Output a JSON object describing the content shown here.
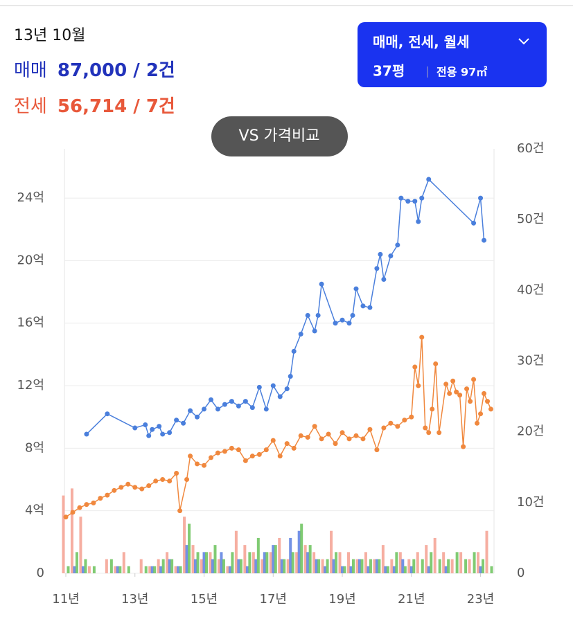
{
  "header": {
    "date": "13년 10월",
    "sale_value": "87,000 / 2건",
    "jeonse_value": "56,714 / 7건",
    "filter": "매매, 전세, 월세",
    "size": "37평",
    "area": "전용 97㎡",
    "compare": "VS 가격비교"
  },
  "chart_data": {
    "type": "line",
    "xlim": [
      11,
      23.35
    ],
    "xticks": [
      {
        "value": 11,
        "label": "11년"
      },
      {
        "value": 13,
        "label": "13년"
      },
      {
        "value": 15,
        "label": "15년"
      },
      {
        "value": 17,
        "label": "17년"
      },
      {
        "value": 19,
        "label": "19년"
      },
      {
        "value": 21,
        "label": "21년"
      },
      {
        "value": 23,
        "label": "23년"
      }
    ],
    "ylim": [
      0,
      27.15
    ],
    "yticks": [
      0,
      {
        "value": 4,
        "label": "4억"
      },
      {
        "value": 8,
        "label": "8억"
      },
      {
        "value": 12,
        "label": "12억"
      },
      {
        "value": 16,
        "label": "16억"
      },
      {
        "value": 20,
        "label": "20억"
      },
      {
        "value": 24,
        "label": "24억"
      }
    ],
    "y2lim": [
      0,
      60
    ],
    "y2ticks": [
      0,
      {
        "value": 10,
        "label": "10건"
      },
      {
        "value": 20,
        "label": "20건"
      },
      {
        "value": 30,
        "label": "30건"
      },
      {
        "value": 40,
        "label": "40건"
      },
      {
        "value": 50,
        "label": "50건"
      },
      {
        "value": 60,
        "label": "60건"
      }
    ],
    "grid": true,
    "series": [
      {
        "name": "매매",
        "color": "#4a7fdc",
        "type": "line",
        "x": [
          11.6,
          12.2,
          13.0,
          13.3,
          13.4,
          13.5,
          13.7,
          13.8,
          14.0,
          14.2,
          14.4,
          14.6,
          14.8,
          15.0,
          15.2,
          15.4,
          15.6,
          15.8,
          16.0,
          16.2,
          16.4,
          16.6,
          16.8,
          17.0,
          17.2,
          17.4,
          17.5,
          17.6,
          17.8,
          18.0,
          18.2,
          18.3,
          18.4,
          18.8,
          19.0,
          19.2,
          19.3,
          19.4,
          19.6,
          19.8,
          20.0,
          20.1,
          20.2,
          20.4,
          20.6,
          20.7,
          20.9,
          21.1,
          21.2,
          21.3,
          21.5,
          22.8,
          23.0,
          23.1
        ],
        "values": [
          8.9,
          10.2,
          9.3,
          9.5,
          8.8,
          9.2,
          9.4,
          8.9,
          9.0,
          9.8,
          9.6,
          10.4,
          10.0,
          10.5,
          11.1,
          10.5,
          10.8,
          11.0,
          10.7,
          11.0,
          10.6,
          11.9,
          10.5,
          12.0,
          11.3,
          11.8,
          12.6,
          14.2,
          15.3,
          16.5,
          15.5,
          16.5,
          18.5,
          16.0,
          16.2,
          16.0,
          16.5,
          18.2,
          17.1,
          17.0,
          19.5,
          20.4,
          18.8,
          20.3,
          21.0,
          24.0,
          23.8,
          23.8,
          22.5,
          24.0,
          25.2,
          22.4,
          24.0,
          21.3
        ]
      },
      {
        "name": "전세",
        "color": "#f0883e",
        "type": "line",
        "x": [
          11.0,
          11.2,
          11.4,
          11.6,
          11.8,
          12.0,
          12.2,
          12.4,
          12.6,
          12.8,
          13.0,
          13.2,
          13.4,
          13.6,
          13.8,
          14.0,
          14.2,
          14.3,
          14.5,
          14.6,
          14.8,
          15.0,
          15.2,
          15.4,
          15.6,
          15.8,
          16.0,
          16.2,
          16.4,
          16.6,
          16.8,
          17.0,
          17.2,
          17.4,
          17.6,
          17.8,
          18.0,
          18.2,
          18.4,
          18.6,
          18.8,
          19.0,
          19.2,
          19.4,
          19.6,
          19.8,
          20.0,
          20.2,
          20.4,
          20.6,
          20.8,
          21.0,
          21.1,
          21.2,
          21.3,
          21.4,
          21.5,
          21.6,
          21.7,
          21.8,
          22.0,
          22.1,
          22.2,
          22.3,
          22.4,
          22.5,
          22.6,
          22.7,
          22.8,
          22.9,
          23.0,
          23.1,
          23.2,
          23.3
        ],
        "values": [
          3.6,
          3.9,
          4.2,
          4.4,
          4.5,
          4.8,
          5.0,
          5.3,
          5.5,
          5.7,
          5.5,
          5.4,
          5.6,
          5.9,
          6.0,
          5.9,
          6.4,
          4.0,
          6.0,
          7.5,
          7.0,
          6.9,
          7.4,
          7.7,
          7.8,
          8.0,
          7.9,
          7.2,
          7.5,
          7.6,
          7.9,
          8.5,
          7.5,
          8.3,
          8.0,
          8.8,
          8.7,
          9.4,
          8.6,
          8.9,
          8.3,
          9.0,
          8.6,
          8.8,
          8.6,
          9.2,
          7.9,
          9.3,
          9.6,
          9.4,
          9.8,
          10.0,
          13.2,
          12.0,
          15.1,
          9.3,
          9.0,
          10.5,
          13.4,
          9.0,
          12.1,
          11.5,
          12.3,
          11.6,
          11.4,
          8.1,
          11.8,
          11.0,
          12.4,
          9.6,
          10.2,
          11.5,
          11.0,
          10.5
        ]
      },
      {
        "color": "#f4a090",
        "type": "bar",
        "axis": "y2",
        "x": [
          11,
          11.25,
          11.5,
          11.75,
          12,
          12.25,
          12.5,
          12.75,
          13,
          13.25,
          13.5,
          13.75,
          14,
          14.25,
          14.5,
          14.75,
          15,
          15.25,
          15.5,
          15.75,
          16,
          16.25,
          16.5,
          16.75,
          17,
          17.25,
          17.5,
          17.75,
          18,
          18.25,
          18.5,
          18.75,
          19,
          19.25,
          19.5,
          19.75,
          20,
          20.25,
          20.5,
          20.75,
          21,
          21.25,
          21.5,
          21.75,
          22,
          22.25,
          22.5,
          22.75,
          23,
          23.25
        ],
        "values": [
          11,
          12,
          8,
          1,
          0,
          2,
          1,
          3,
          0,
          2,
          1,
          2,
          3,
          1,
          8,
          4,
          2,
          3,
          2,
          1,
          6,
          4,
          3,
          2,
          3,
          5,
          2,
          3,
          4,
          3,
          2,
          6,
          3,
          3,
          2,
          3,
          2,
          4,
          2,
          3,
          2,
          3,
          4,
          5,
          3,
          2,
          3,
          2,
          3,
          6
        ]
      },
      {
        "color": "#5b7fe0",
        "type": "bar",
        "axis": "y2",
        "x": [
          11,
          11.25,
          11.5,
          11.75,
          12,
          12.25,
          12.5,
          12.75,
          13,
          13.25,
          13.5,
          13.75,
          14,
          14.25,
          14.5,
          14.75,
          15,
          15.25,
          15.5,
          15.75,
          16,
          16.25,
          16.5,
          16.75,
          17,
          17.25,
          17.5,
          17.75,
          18,
          18.25,
          18.5,
          18.75,
          19,
          19.25,
          19.5,
          19.75,
          20,
          20.25,
          20.5,
          20.75,
          21,
          21.25,
          21.5,
          21.75,
          22,
          22.25,
          22.5,
          22.75,
          23,
          23.25
        ],
        "values": [
          0,
          1,
          1,
          0,
          0,
          0,
          1,
          0,
          0,
          0,
          1,
          1,
          2,
          1,
          4,
          2,
          3,
          2,
          3,
          1,
          2,
          1,
          2,
          3,
          4,
          2,
          5,
          6,
          3,
          2,
          1,
          2,
          1,
          1,
          2,
          1,
          2,
          1,
          1,
          2,
          1,
          0,
          1,
          0,
          1,
          0,
          0,
          0,
          1,
          0
        ]
      },
      {
        "color": "#6ac25a",
        "type": "bar",
        "axis": "y2",
        "x": [
          11,
          11.25,
          11.5,
          11.75,
          12,
          12.25,
          12.5,
          12.75,
          13,
          13.25,
          13.5,
          13.75,
          14,
          14.25,
          14.5,
          14.75,
          15,
          15.25,
          15.5,
          15.75,
          16,
          16.25,
          16.5,
          16.75,
          17,
          17.25,
          17.5,
          17.75,
          18,
          18.25,
          18.5,
          18.75,
          19,
          19.25,
          19.5,
          19.75,
          20,
          20.25,
          20.5,
          20.75,
          21,
          21.25,
          21.5,
          21.75,
          22,
          22.25,
          22.5,
          22.75,
          23,
          23.25
        ],
        "values": [
          1,
          3,
          2,
          1,
          0,
          2,
          1,
          1,
          0,
          1,
          1,
          2,
          2,
          1,
          7,
          3,
          3,
          4,
          2,
          3,
          2,
          3,
          5,
          3,
          4,
          2,
          3,
          7,
          4,
          2,
          2,
          3,
          1,
          2,
          2,
          2,
          2,
          1,
          3,
          1,
          2,
          2,
          3,
          2,
          2,
          3,
          2,
          3,
          2,
          1
        ]
      }
    ]
  }
}
